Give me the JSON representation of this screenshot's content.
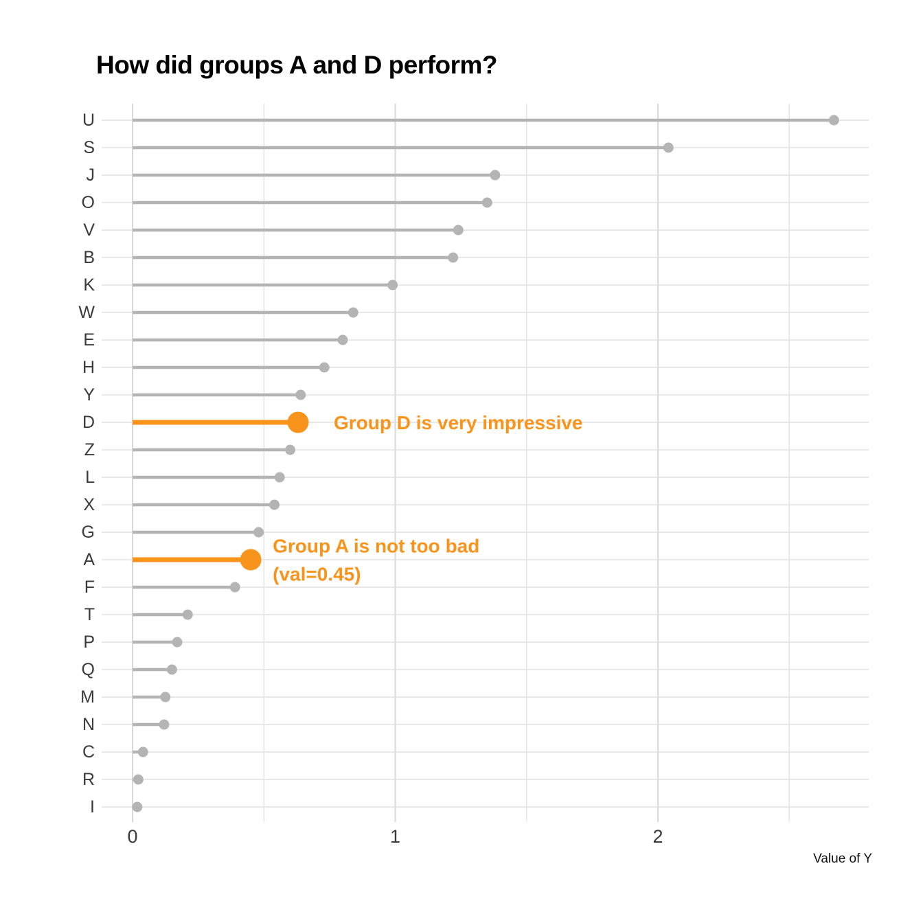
{
  "page": {
    "title": "How did groups A and D perform?",
    "x_axis_title": "Value of Y"
  },
  "chart_data": {
    "type": "bar",
    "variant": "horizontal-lollipop",
    "title": "How did groups A and D perform?",
    "xlabel": "Value of Y",
    "ylabel": "",
    "grid": true,
    "legend": "none",
    "xlim": [
      -0.12,
      2.8
    ],
    "xticks": [
      0,
      1,
      2
    ],
    "xtick_labels": [
      "0",
      "1",
      "2"
    ],
    "minor_xticks": [
      0.5,
      1.5,
      2.5
    ],
    "categories": [
      "U",
      "S",
      "J",
      "O",
      "V",
      "B",
      "K",
      "W",
      "E",
      "H",
      "Y",
      "D",
      "Z",
      "L",
      "X",
      "G",
      "A",
      "F",
      "T",
      "P",
      "Q",
      "M",
      "N",
      "C",
      "R",
      "I"
    ],
    "values": [
      2.67,
      2.04,
      1.38,
      1.35,
      1.24,
      1.22,
      0.99,
      0.84,
      0.8,
      0.73,
      0.64,
      0.63,
      0.6,
      0.56,
      0.54,
      0.48,
      0.45,
      0.39,
      0.21,
      0.17,
      0.15,
      0.125,
      0.12,
      0.04,
      0.022,
      0.018
    ],
    "highlighted_categories": [
      "D",
      "A"
    ],
    "colors": {
      "normal": "#b4b4b4",
      "highlight": "#f8941c",
      "grid_major": "#d8d8d8",
      "grid_minor": "#e4e4e4",
      "grid_row": "#e1e1e1",
      "axis_text": "#3a3a3a",
      "title_text": "#000000"
    },
    "annotations": [
      {
        "target": "D",
        "lines": [
          "Group D is very impressive"
        ]
      },
      {
        "target": "A",
        "lines": [
          "Group A is not too bad",
          " (val=0.45)"
        ]
      }
    ]
  }
}
